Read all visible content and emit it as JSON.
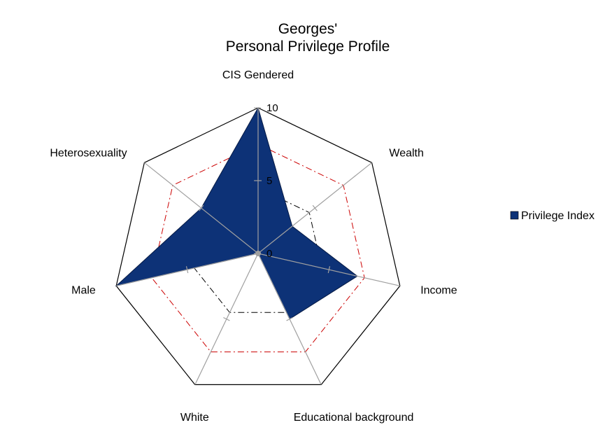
{
  "chart_data": {
    "type": "radar",
    "title_line1": "Georges'",
    "title_line2": "Personal Privilege Profile",
    "axes": [
      "CIS  Gendered",
      "Wealth",
      "Income",
      "Educational background",
      "White",
      "Male",
      "Heterosexuality"
    ],
    "rlim": [
      0,
      10
    ],
    "ticks": [
      "0",
      "5",
      "10"
    ],
    "series": [
      {
        "name": "Privilege Index",
        "values": [
          10,
          3,
          7,
          5,
          0,
          10,
          5
        ],
        "color": "#0d3277"
      }
    ],
    "reference_lines": [
      {
        "value": 4.5,
        "style": "dash-dot",
        "color": "#000000"
      },
      {
        "value": 7.5,
        "style": "dash-dot",
        "color": "#cc0000"
      }
    ],
    "grid_color": "#a0a0a0",
    "outer_color": "#000000",
    "legend_position": "right"
  }
}
